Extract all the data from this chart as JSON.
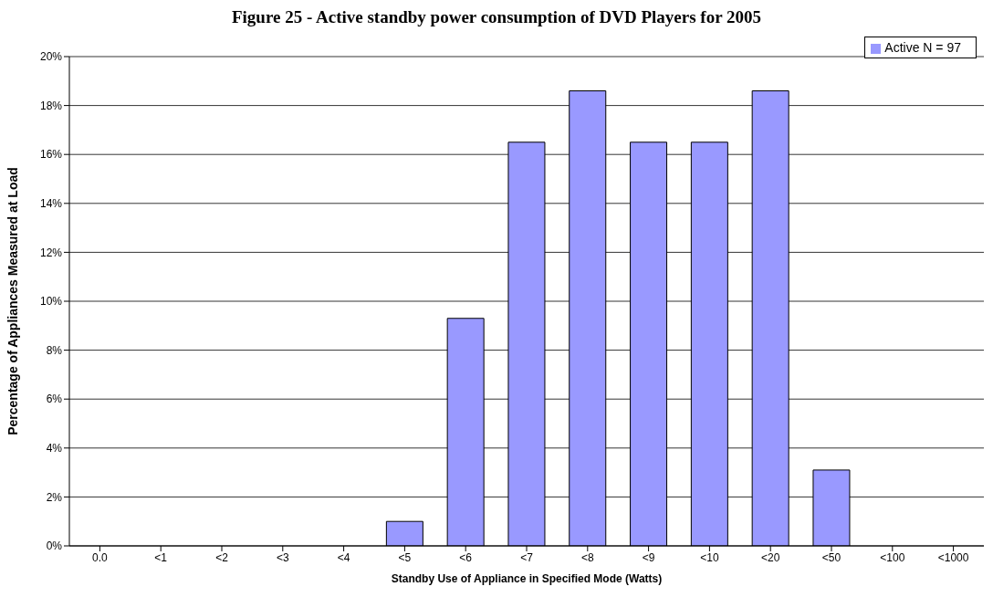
{
  "chart_data": {
    "type": "bar",
    "title": "Figure 25 - Active standby power consumption of DVD Players for 2005",
    "xlabel": "Standby Use of Appliance in Specified Mode (Watts)",
    "ylabel": "Percentage of Appliances Measured at Load",
    "categories": [
      "0.0",
      "<1",
      "<2",
      "<3",
      "<4",
      "<5",
      "<6",
      "<7",
      "<8",
      "<9",
      "<10",
      "<20",
      "<50",
      "<100",
      "<1000"
    ],
    "series": [
      {
        "name": "Active N = 97",
        "color": "#9999ff",
        "values": [
          0,
          0,
          0,
          0,
          0,
          1.0,
          9.3,
          16.5,
          18.6,
          16.5,
          16.5,
          18.6,
          3.1,
          0,
          0
        ]
      }
    ],
    "ylim": [
      0,
      20
    ],
    "yticks": [
      {
        "value": 0,
        "label": "0%"
      },
      {
        "value": 2,
        "label": "2%"
      },
      {
        "value": 4,
        "label": "4%"
      },
      {
        "value": 6,
        "label": "6%"
      },
      {
        "value": 8,
        "label": "8%"
      },
      {
        "value": 10,
        "label": "10%"
      },
      {
        "value": 12,
        "label": "12%"
      },
      {
        "value": 14,
        "label": "14%"
      },
      {
        "value": 16,
        "label": "16%"
      },
      {
        "value": 18,
        "label": "18%"
      },
      {
        "value": 20,
        "label": "20%"
      }
    ],
    "grid": "y",
    "legend": "top right"
  }
}
